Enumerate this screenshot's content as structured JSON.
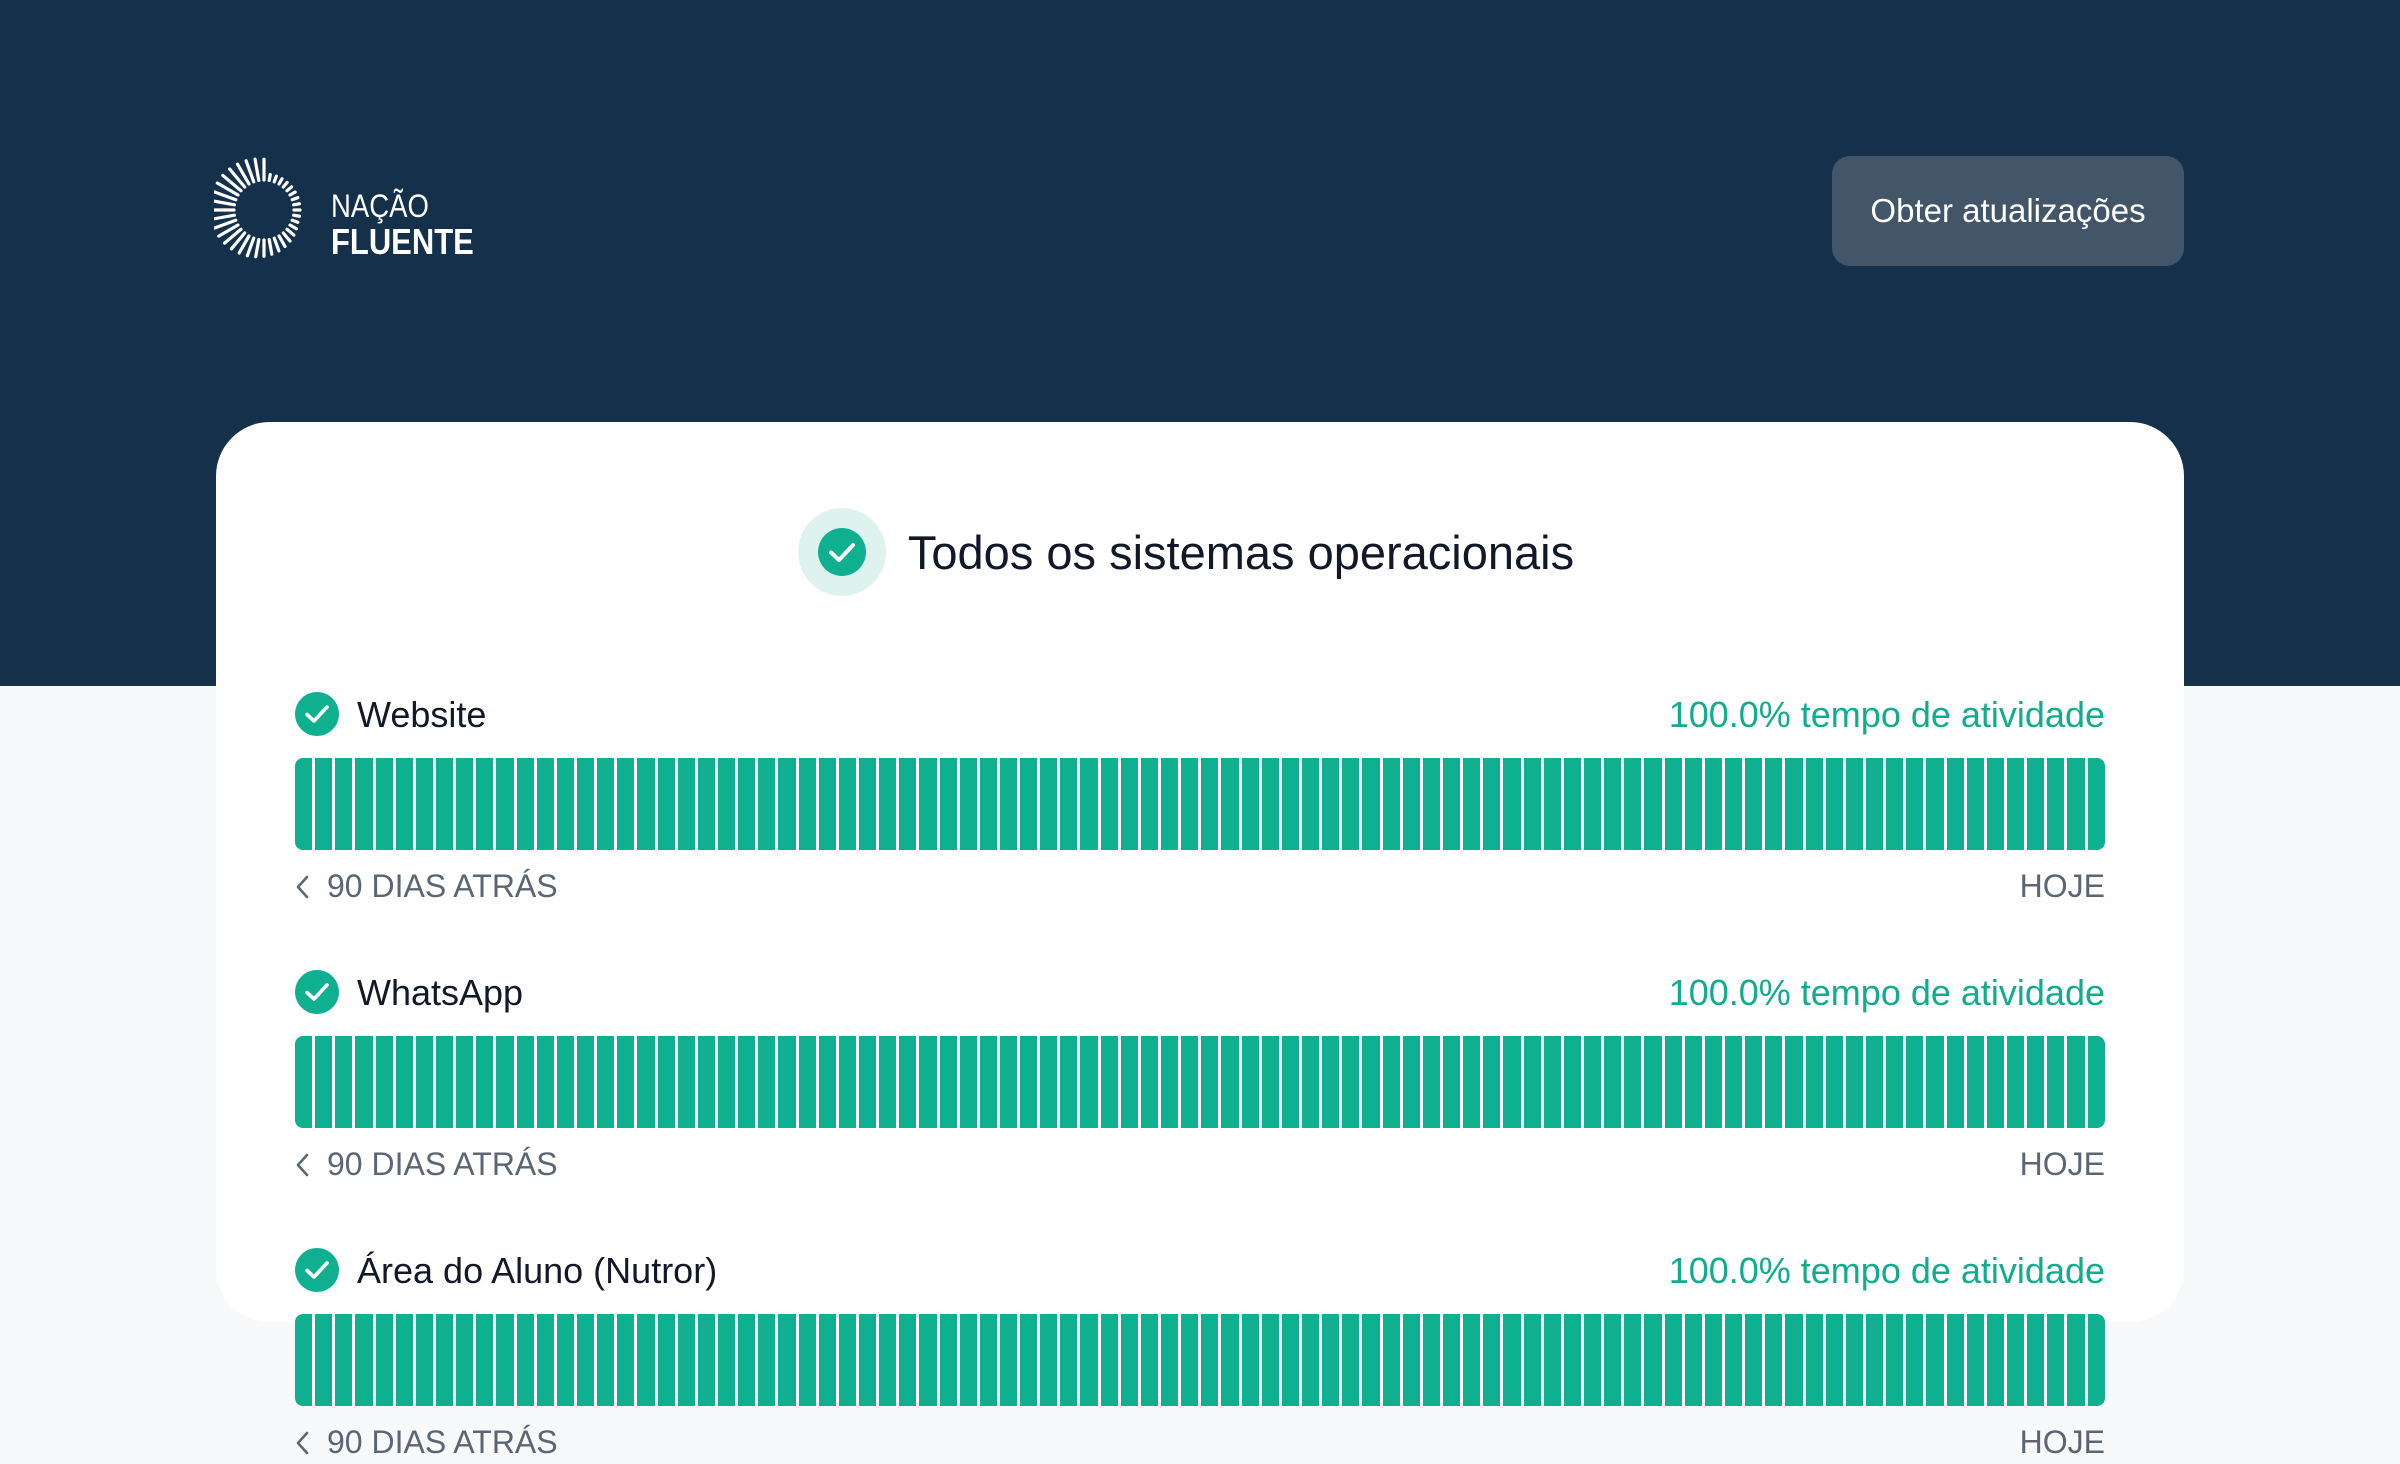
{
  "brand": {
    "line1": "NAÇÃO",
    "line2": "FLUENTE",
    "icon": "sunburst-ring-logo"
  },
  "header": {
    "subscribe_label": "Obter atualizações"
  },
  "overall_status": {
    "title": "Todos os sistemas operacionais",
    "icon": "check-circle-icon"
  },
  "colors": {
    "hero_background": "#14304a",
    "operational_green": "#0fb08f",
    "uptime_text": "#0fac8e",
    "button_background": "#435569"
  },
  "components": [
    {
      "name": "Website",
      "uptime": "100.0% tempo de atividade",
      "status": "operational",
      "days_shown": 90,
      "range_start": "90 DIAS ATRÁS",
      "range_end": "HOJE"
    },
    {
      "name": "WhatsApp",
      "uptime": "100.0% tempo de atividade",
      "status": "operational",
      "days_shown": 90,
      "range_start": "90 DIAS ATRÁS",
      "range_end": "HOJE"
    },
    {
      "name": "Área do Aluno (Nutror)",
      "uptime": "100.0% tempo de atividade",
      "status": "operational",
      "days_shown": 90,
      "range_start": "90 DIAS ATRÁS",
      "range_end": "HOJE"
    }
  ]
}
